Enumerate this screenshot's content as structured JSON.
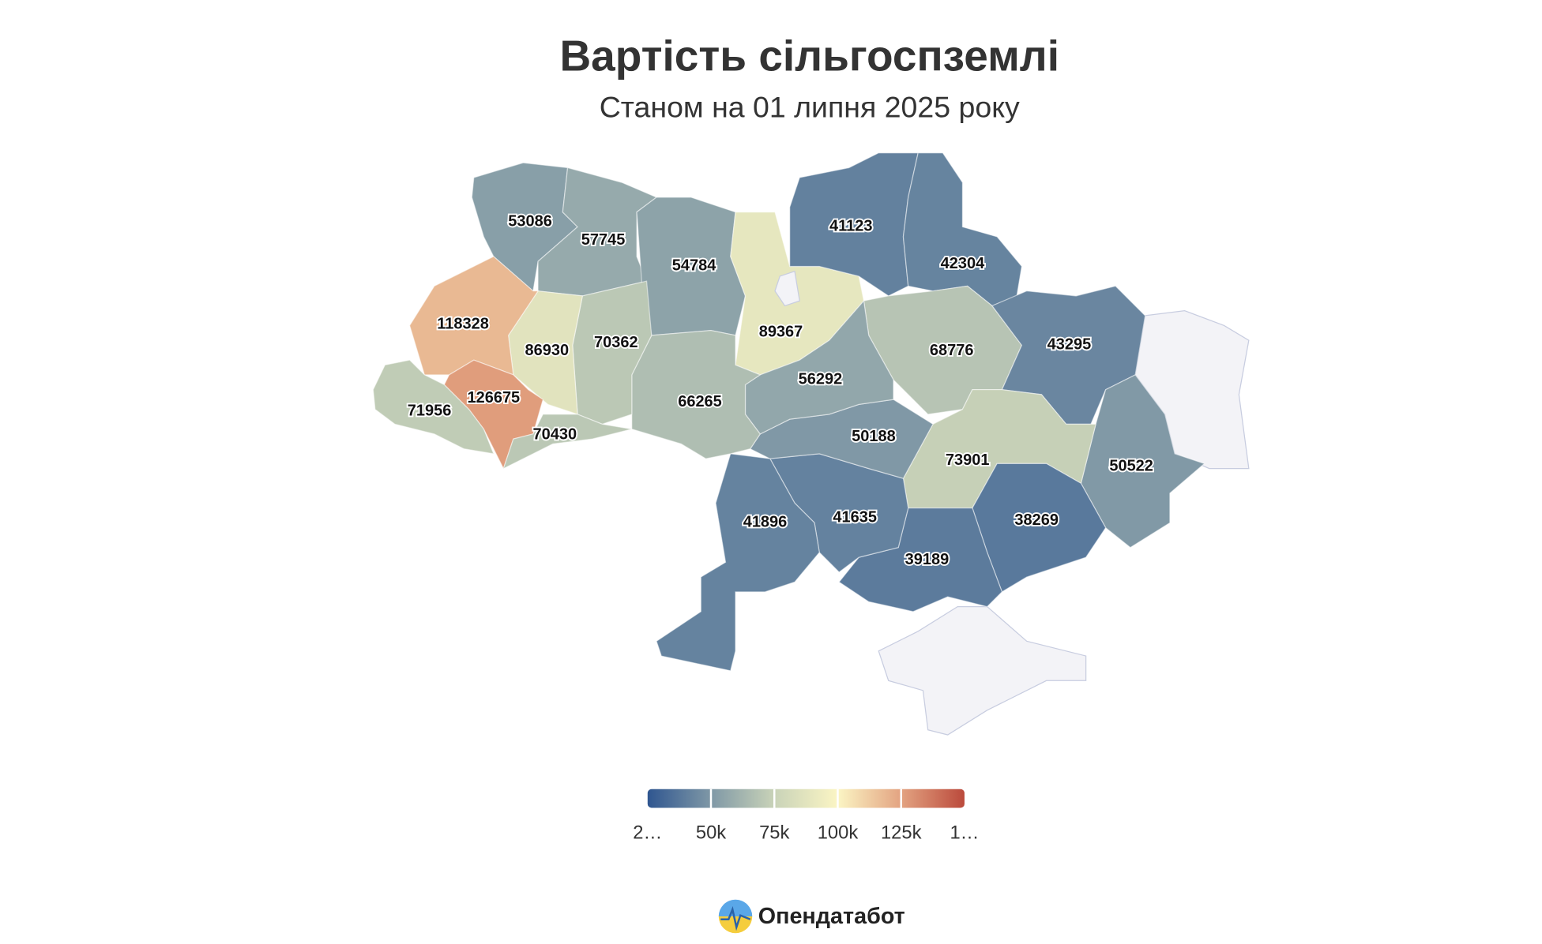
{
  "chart_data": {
    "type": "choropleth",
    "title": "Вартість сільгоспземлі",
    "subtitle": "Станом на 01 липня 2025 року",
    "values": [
      53086,
      57745,
      54784,
      89367,
      41123,
      42304,
      68776,
      43295,
      50522,
      73901,
      38269,
      39189,
      41635,
      41896,
      50188,
      56292,
      66265,
      70362,
      86930,
      118328,
      126675,
      71956,
      70430
    ],
    "colorlim": [
      25000,
      150000
    ],
    "color_stops": [
      "#2f5690",
      "#7f98a6",
      "#c9d3b8",
      "#fbf5c4",
      "#e3a381",
      "#bb4a3c"
    ],
    "no_data_color": "#f3f3f7",
    "legend_ticks": [
      {
        "value": 25000,
        "label": "2…"
      },
      {
        "value": 50000,
        "label": "50k"
      },
      {
        "value": 75000,
        "label": "75k"
      },
      {
        "value": 100000,
        "label": "100k"
      },
      {
        "value": 125000,
        "label": "125k"
      },
      {
        "value": 150000,
        "label": "1…"
      }
    ]
  },
  "footer": {
    "brand": "Опендатабот"
  }
}
